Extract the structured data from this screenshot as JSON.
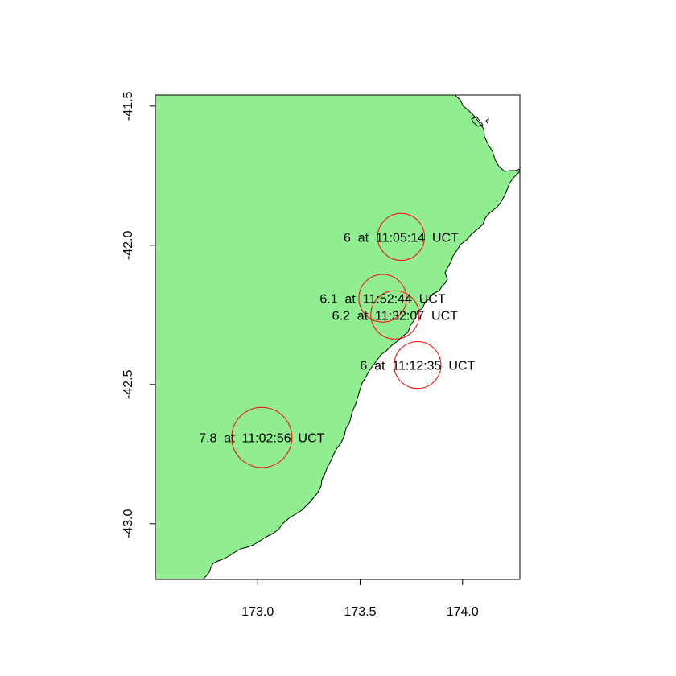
{
  "chart_data": {
    "type": "scatter",
    "title": "",
    "xlabel": "",
    "ylabel": "",
    "xlim": [
      172.5,
      174.28
    ],
    "ylim": [
      -43.2,
      -41.46
    ],
    "x_ticks": [
      {
        "value": 173.0,
        "label": "173.0"
      },
      {
        "value": 173.5,
        "label": "173.5"
      },
      {
        "value": 174.0,
        "label": "174.0"
      }
    ],
    "y_ticks": [
      {
        "value": -41.5,
        "label": "-41.5"
      },
      {
        "value": -42.0,
        "label": "-42.0"
      },
      {
        "value": -42.5,
        "label": "-42.5"
      },
      {
        "value": -43.0,
        "label": "-43.0"
      }
    ],
    "grid": false,
    "land_color": "#90ee90",
    "sea_color": "#ffffff",
    "circle_color": "#ff0000",
    "earthquakes": [
      {
        "lon": 173.02,
        "lat": -42.69,
        "magnitude": 7.8,
        "time": "11:02:56",
        "label": "7.8  at  11:02:56  UCT"
      },
      {
        "lon": 173.7,
        "lat": -41.97,
        "magnitude": 6.0,
        "time": "11:05:14",
        "label": "6  at  11:05:14  UCT"
      },
      {
        "lon": 173.78,
        "lat": -42.43,
        "magnitude": 6.0,
        "time": "11:12:35",
        "label": "6  at  11:12:35  UCT"
      },
      {
        "lon": 173.67,
        "lat": -42.25,
        "magnitude": 6.2,
        "time": "11:32:07",
        "label": "6.2  at  11:32:07  UCT"
      },
      {
        "lon": 173.61,
        "lat": -42.19,
        "magnitude": 6.1,
        "time": "11:52:44",
        "label": "6.1  at  11:52:44  UCT"
      }
    ]
  }
}
